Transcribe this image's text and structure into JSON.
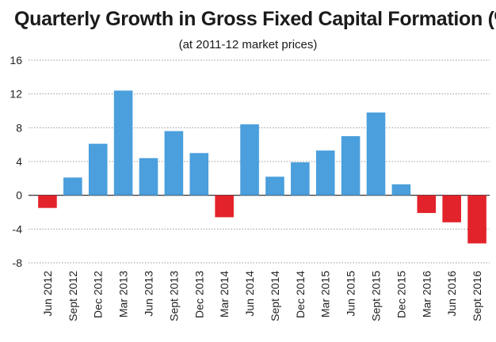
{
  "chart_data": {
    "type": "bar",
    "title": "Quarterly Growth in Gross Fixed Capital Formation (%)",
    "subtitle": "(at 2011-12 market prices)",
    "xlabel": "",
    "ylabel": "",
    "ylim": [
      -8,
      16
    ],
    "yticks": [
      16,
      12,
      8,
      4,
      0,
      -4,
      -8
    ],
    "grid": true,
    "colors": {
      "positive": "#4a9fdc",
      "negative": "#e3232b"
    },
    "categories": [
      "Jun 2012",
      "Sept 2012",
      "Dec 2012",
      "Mar 2013",
      "Jun 2013",
      "Sept 2013",
      "Dec 2013",
      "Mar 2014",
      "Jun 2014",
      "Sept 2014",
      "Dec 2014",
      "Mar 2015",
      "Jun 2015",
      "Sept 2015",
      "Dec 2015",
      "Mar 2016",
      "Jun 2016",
      "Sept 2016"
    ],
    "values": [
      -1.5,
      2.1,
      6.1,
      12.4,
      4.4,
      7.6,
      5.0,
      -2.6,
      8.4,
      2.2,
      3.9,
      5.3,
      7.0,
      9.8,
      1.3,
      -2.1,
      -3.2,
      -5.7
    ]
  }
}
